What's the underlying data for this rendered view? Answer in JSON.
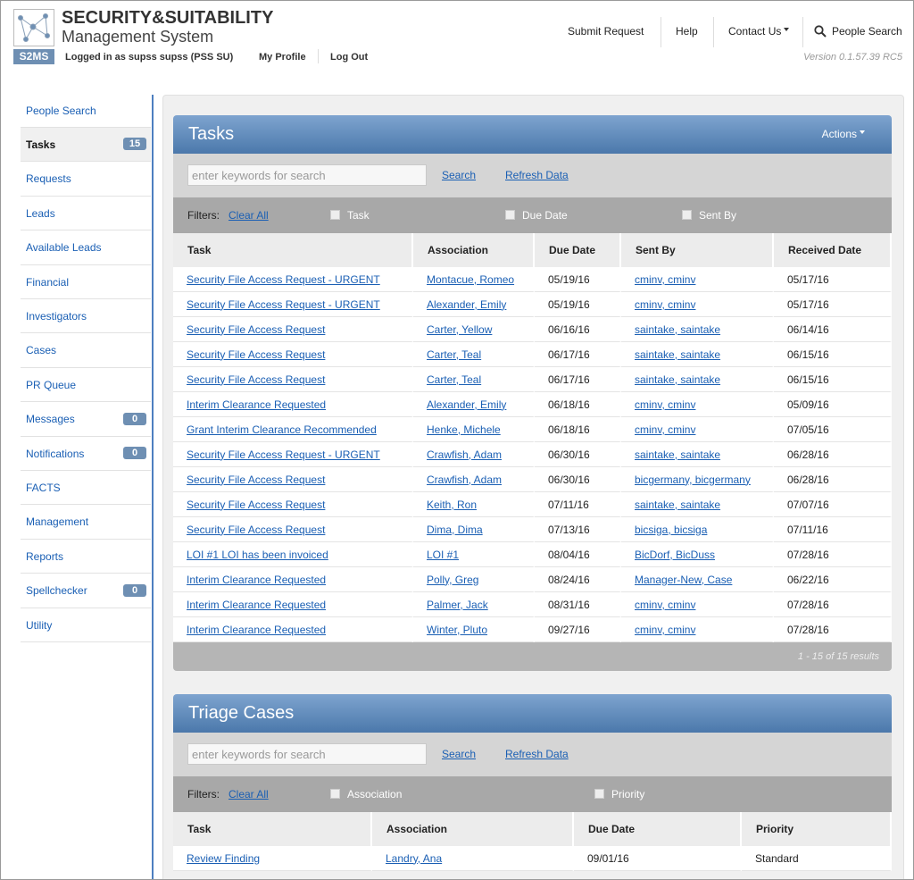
{
  "header": {
    "logo_title": "SECURITY&SUITABILITY",
    "logo_subtitle": "Management System",
    "nav": [
      "Submit Request",
      "Help",
      "Contact Us",
      "People Search"
    ],
    "badge": "S2MS",
    "user": "Logged in as supss supss (PSS SU)",
    "links": [
      "My Profile",
      "Log Out"
    ],
    "version": "Version 0.1.57.39 RC5"
  },
  "sidebar": [
    {
      "label": "People Search"
    },
    {
      "label": "Tasks",
      "count": 15
    },
    {
      "label": "Requests"
    },
    {
      "label": "Leads"
    },
    {
      "label": "Available Leads"
    },
    {
      "label": "Financial"
    },
    {
      "label": "Investigators"
    },
    {
      "label": "Cases"
    },
    {
      "label": "PR Queue"
    },
    {
      "label": "Messages",
      "count": 0
    },
    {
      "label": "Notifications",
      "count": 0
    },
    {
      "label": "FACTS"
    },
    {
      "label": "Management"
    },
    {
      "label": "Reports"
    },
    {
      "label": "Spellchecker",
      "count": 0
    },
    {
      "label": "Utility"
    }
  ],
  "tasks": {
    "title": "Tasks",
    "actions": "Actions",
    "search_placeholder": "enter keywords for search",
    "search": "Search",
    "refresh": "Refresh Data",
    "filters_label": "Filters:",
    "clear_all": "Clear All",
    "filters": [
      "Task",
      "Due Date",
      "Sent By"
    ],
    "columns": [
      "Task",
      "Association",
      "Due Date",
      "Sent By",
      "Received Date"
    ],
    "rows": [
      [
        "Security File Access Request - URGENT",
        "Montacue, Romeo",
        "05/19/16",
        "cminv, cminv",
        "05/17/16"
      ],
      [
        "Security File Access Request - URGENT",
        "Alexander, Emily",
        "05/19/16",
        "cminv, cminv",
        "05/17/16"
      ],
      [
        "Security File Access Request",
        "Carter, Yellow",
        "06/16/16",
        "saintake, saintake",
        "06/14/16"
      ],
      [
        "Security File Access Request",
        "Carter, Teal",
        "06/17/16",
        "saintake, saintake",
        "06/15/16"
      ],
      [
        "Security File Access Request",
        "Carter, Teal",
        "06/17/16",
        "saintake, saintake",
        "06/15/16"
      ],
      [
        "Interim Clearance Requested",
        "Alexander, Emily",
        "06/18/16",
        "cminv, cminv",
        "05/09/16"
      ],
      [
        "Grant Interim Clearance Recommended",
        "Henke, Michele",
        "06/18/16",
        "cminv, cminv",
        "07/05/16"
      ],
      [
        "Security File Access Request - URGENT",
        "Crawfish, Adam",
        "06/30/16",
        "saintake, saintake",
        "06/28/16"
      ],
      [
        "Security File Access Request",
        "Crawfish, Adam",
        "06/30/16",
        "bicgermany, bicgermany",
        "06/28/16"
      ],
      [
        "Security File Access Request",
        "Keith, Ron",
        "07/11/16",
        "saintake, saintake",
        "07/07/16"
      ],
      [
        "Security File Access Request",
        "Dima, Dima",
        "07/13/16",
        "bicsiga, bicsiga",
        "07/11/16"
      ],
      [
        "LOI #1 LOI has been invoiced",
        "LOI #1",
        "08/04/16",
        "BicDorf, BicDuss",
        "07/28/16"
      ],
      [
        "Interim Clearance Requested",
        "Polly, Greg",
        "08/24/16",
        "Manager-New, Case",
        "06/22/16"
      ],
      [
        "Interim Clearance Requested",
        "Palmer, Jack",
        "08/31/16",
        "cminv, cminv",
        "07/28/16"
      ],
      [
        "Interim Clearance Requested",
        "Winter, Pluto",
        "09/27/16",
        "cminv, cminv",
        "07/28/16"
      ]
    ],
    "footer": "1 - 15 of 15 results"
  },
  "triage": {
    "title": "Triage Cases",
    "search_placeholder": "enter keywords for search",
    "search": "Search",
    "refresh": "Refresh Data",
    "filters_label": "Filters:",
    "clear_all": "Clear All",
    "filters": [
      "Association",
      "Priority"
    ],
    "columns": [
      "Task",
      "Association",
      "Due Date",
      "Priority"
    ],
    "rows": [
      [
        "Review Finding",
        "Landry, Ana",
        "09/01/16",
        "Standard"
      ]
    ]
  }
}
